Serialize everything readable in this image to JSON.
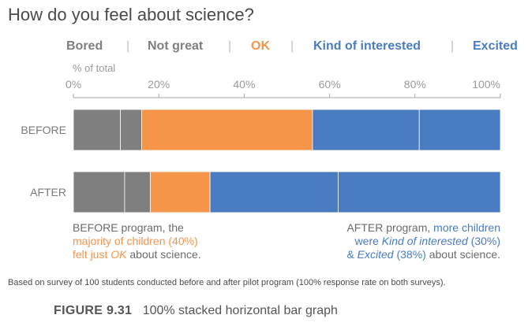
{
  "chart_data": {
    "type": "bar",
    "orientation": "horizontal",
    "stacked": true,
    "title": "How do you feel about science?",
    "xlabel": "% of total",
    "xlim": [
      0,
      100
    ],
    "ticks": [
      "0%",
      "20%",
      "40%",
      "60%",
      "80%",
      "100%"
    ],
    "tick_values": [
      0,
      20,
      40,
      60,
      80,
      100
    ],
    "categories": [
      "BEFORE",
      "AFTER"
    ],
    "series": [
      {
        "name": "Bored",
        "values": [
          11,
          12
        ],
        "color": "#7f7f7f"
      },
      {
        "name": "Not great",
        "values": [
          5,
          6
        ],
        "color": "#7f7f7f"
      },
      {
        "name": "OK",
        "values": [
          40,
          14
        ],
        "color": "#f4954a"
      },
      {
        "name": "Kind of interested",
        "values": [
          25,
          30
        ],
        "color": "#4a7cc1"
      },
      {
        "name": "Excited",
        "values": [
          19,
          38
        ],
        "color": "#4a7cc1"
      }
    ]
  },
  "legend": {
    "bored": "Bored",
    "not_great": "Not great",
    "ok": "OK",
    "kind_of_interested": "Kind of interested",
    "excited": "Excited",
    "separator": "|"
  },
  "annotations": {
    "before": {
      "l1": "BEFORE program, the",
      "l2": "majority of children (40%)",
      "l3a": "felt just ",
      "l3b": "OK",
      "l3c": " about science."
    },
    "after": {
      "l1a": "AFTER program, ",
      "l1b": "more children",
      "l2a": "were ",
      "l2b": "Kind of interested",
      "l2c": " (30%)",
      "l3a": "& ",
      "l3b": "Excited",
      "l3c": " (38%)",
      "l3d": " about science."
    }
  },
  "footnote": "Based on survey of 100 students conducted before and after pilot program (100% response rate on both surveys).",
  "caption": {
    "label": "FIGURE 9.31",
    "text": "100% stacked horizontal bar graph"
  }
}
